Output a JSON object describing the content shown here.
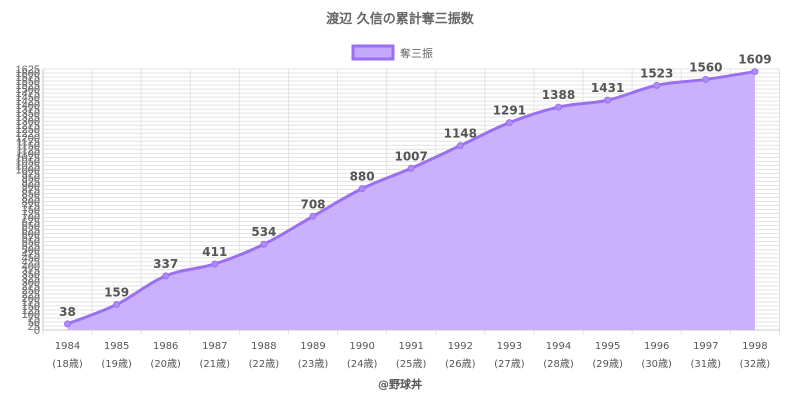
{
  "chart_data": {
    "type": "area",
    "title": "渡辺 久信の累計奪三振数",
    "legend": {
      "label": "奪三振",
      "placement": "top-center"
    },
    "series": [
      {
        "name": "奪三振",
        "values": [
          38,
          159,
          337,
          411,
          534,
          708,
          880,
          1007,
          1148,
          1291,
          1388,
          1431,
          1523,
          1560,
          1609
        ]
      }
    ],
    "categories": [
      "1984",
      "1985",
      "1986",
      "1987",
      "1988",
      "1989",
      "1990",
      "1991",
      "1992",
      "1993",
      "1994",
      "1995",
      "1996",
      "1997",
      "1998"
    ],
    "age_labels": [
      "(18歳)",
      "(19歳)",
      "(20歳)",
      "(21歳)",
      "(22歳)",
      "(23歳)",
      "(24歳)",
      "(25歳)",
      "(26歳)",
      "(27歳)",
      "(28歳)",
      "(29歳)",
      "(30歳)",
      "(31歳)",
      "(32歳)"
    ],
    "ylim": [
      0,
      1625
    ],
    "ytick_step": 25,
    "grid": true,
    "colors": {
      "line": "#9b6ff2",
      "fill": "#c4a8fb",
      "point": "#b08cf7",
      "grid": "#e3e3e3"
    }
  },
  "credit": "@野球丼"
}
